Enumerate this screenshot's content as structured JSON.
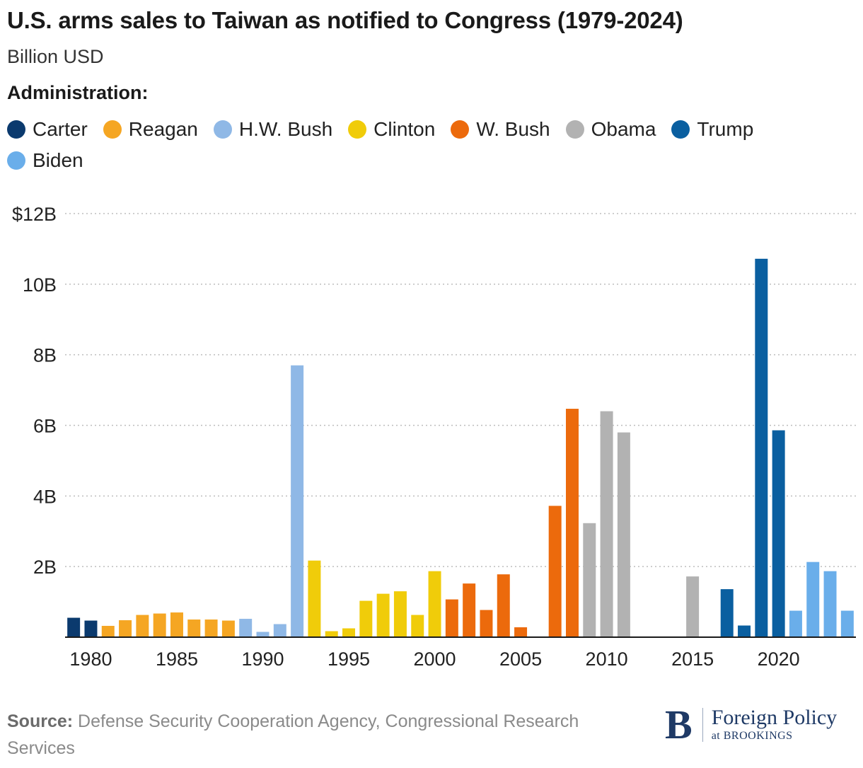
{
  "header": {
    "title": "U.S. arms sales to Taiwan as notified to Congress (1979-2024)",
    "subtitle": "Billion USD",
    "legend_title": "Administration:"
  },
  "legend": [
    {
      "label": "Carter",
      "color": "#0b3a6e"
    },
    {
      "label": "Reagan",
      "color": "#f5a623"
    },
    {
      "label": "H.W. Bush",
      "color": "#8fb8e6"
    },
    {
      "label": "Clinton",
      "color": "#f0cc0a"
    },
    {
      "label": "W. Bush",
      "color": "#ec6a0c"
    },
    {
      "label": "Obama",
      "color": "#b2b2b2"
    },
    {
      "label": "Trump",
      "color": "#0a5fa0"
    },
    {
      "label": "Biden",
      "color": "#6aaeea"
    }
  ],
  "chart_data": {
    "type": "bar",
    "title": "U.S. arms sales to Taiwan as notified to Congress (1979-2024)",
    "ylabel": "Billion USD",
    "ylim": [
      0,
      12
    ],
    "xlim": [
      1979,
      2024
    ],
    "y_ticks": [
      {
        "value": 2,
        "label": "2B"
      },
      {
        "value": 4,
        "label": "4B"
      },
      {
        "value": 6,
        "label": "6B"
      },
      {
        "value": 8,
        "label": "8B"
      },
      {
        "value": 10,
        "label": "10B"
      },
      {
        "value": 12,
        "label": "$12B"
      }
    ],
    "x_ticks": [
      1980,
      1985,
      1990,
      1995,
      2000,
      2005,
      2010,
      2015,
      2020
    ],
    "grid": "horizontal dotted",
    "legend_position": "top",
    "bars": [
      {
        "year": 1979,
        "value": 0.55,
        "admin": "Carter"
      },
      {
        "year": 1980,
        "value": 0.47,
        "admin": "Carter"
      },
      {
        "year": 1981,
        "value": 0.32,
        "admin": "Reagan"
      },
      {
        "year": 1982,
        "value": 0.48,
        "admin": "Reagan"
      },
      {
        "year": 1983,
        "value": 0.63,
        "admin": "Reagan"
      },
      {
        "year": 1984,
        "value": 0.67,
        "admin": "Reagan"
      },
      {
        "year": 1985,
        "value": 0.7,
        "admin": "Reagan"
      },
      {
        "year": 1986,
        "value": 0.5,
        "admin": "Reagan"
      },
      {
        "year": 1987,
        "value": 0.5,
        "admin": "Reagan"
      },
      {
        "year": 1988,
        "value": 0.47,
        "admin": "Reagan"
      },
      {
        "year": 1989,
        "value": 0.52,
        "admin": "H.W. Bush"
      },
      {
        "year": 1990,
        "value": 0.15,
        "admin": "H.W. Bush"
      },
      {
        "year": 1991,
        "value": 0.37,
        "admin": "H.W. Bush"
      },
      {
        "year": 1992,
        "value": 7.7,
        "admin": "H.W. Bush"
      },
      {
        "year": 1993,
        "value": 2.17,
        "admin": "Clinton"
      },
      {
        "year": 1994,
        "value": 0.17,
        "admin": "Clinton"
      },
      {
        "year": 1995,
        "value": 0.25,
        "admin": "Clinton"
      },
      {
        "year": 1996,
        "value": 1.03,
        "admin": "Clinton"
      },
      {
        "year": 1997,
        "value": 1.23,
        "admin": "Clinton"
      },
      {
        "year": 1998,
        "value": 1.3,
        "admin": "Clinton"
      },
      {
        "year": 1999,
        "value": 0.63,
        "admin": "Clinton"
      },
      {
        "year": 2000,
        "value": 1.87,
        "admin": "Clinton"
      },
      {
        "year": 2001,
        "value": 1.07,
        "admin": "W. Bush"
      },
      {
        "year": 2002,
        "value": 1.52,
        "admin": "W. Bush"
      },
      {
        "year": 2003,
        "value": 0.77,
        "admin": "W. Bush"
      },
      {
        "year": 2004,
        "value": 1.78,
        "admin": "W. Bush"
      },
      {
        "year": 2005,
        "value": 0.28,
        "admin": "W. Bush"
      },
      {
        "year": 2006,
        "value": 0,
        "admin": "W. Bush"
      },
      {
        "year": 2007,
        "value": 3.72,
        "admin": "W. Bush"
      },
      {
        "year": 2008,
        "value": 6.47,
        "admin": "W. Bush"
      },
      {
        "year": 2009,
        "value": 3.23,
        "admin": "Obama"
      },
      {
        "year": 2010,
        "value": 6.4,
        "admin": "Obama"
      },
      {
        "year": 2011,
        "value": 5.8,
        "admin": "Obama"
      },
      {
        "year": 2012,
        "value": 0,
        "admin": "Obama"
      },
      {
        "year": 2013,
        "value": 0,
        "admin": "Obama"
      },
      {
        "year": 2014,
        "value": 0,
        "admin": "Obama"
      },
      {
        "year": 2015,
        "value": 1.72,
        "admin": "Obama"
      },
      {
        "year": 2016,
        "value": 0,
        "admin": "Obama"
      },
      {
        "year": 2017,
        "value": 1.36,
        "admin": "Trump"
      },
      {
        "year": 2018,
        "value": 0.33,
        "admin": "Trump"
      },
      {
        "year": 2019,
        "value": 10.72,
        "admin": "Trump"
      },
      {
        "year": 2020,
        "value": 5.86,
        "admin": "Trump"
      },
      {
        "year": 2021,
        "value": 0.75,
        "admin": "Biden"
      },
      {
        "year": 2022,
        "value": 2.13,
        "admin": "Biden"
      },
      {
        "year": 2023,
        "value": 1.87,
        "admin": "Biden"
      },
      {
        "year": 2024,
        "value": 0.75,
        "admin": "Biden"
      }
    ]
  },
  "footer": {
    "source_label": "Source:",
    "source_text": "Defense Security Cooperation Agency, Congressional Research Services",
    "logo_mark": "B",
    "logo_line1": "Foreign Policy",
    "logo_line2": "at BROOKINGS"
  }
}
